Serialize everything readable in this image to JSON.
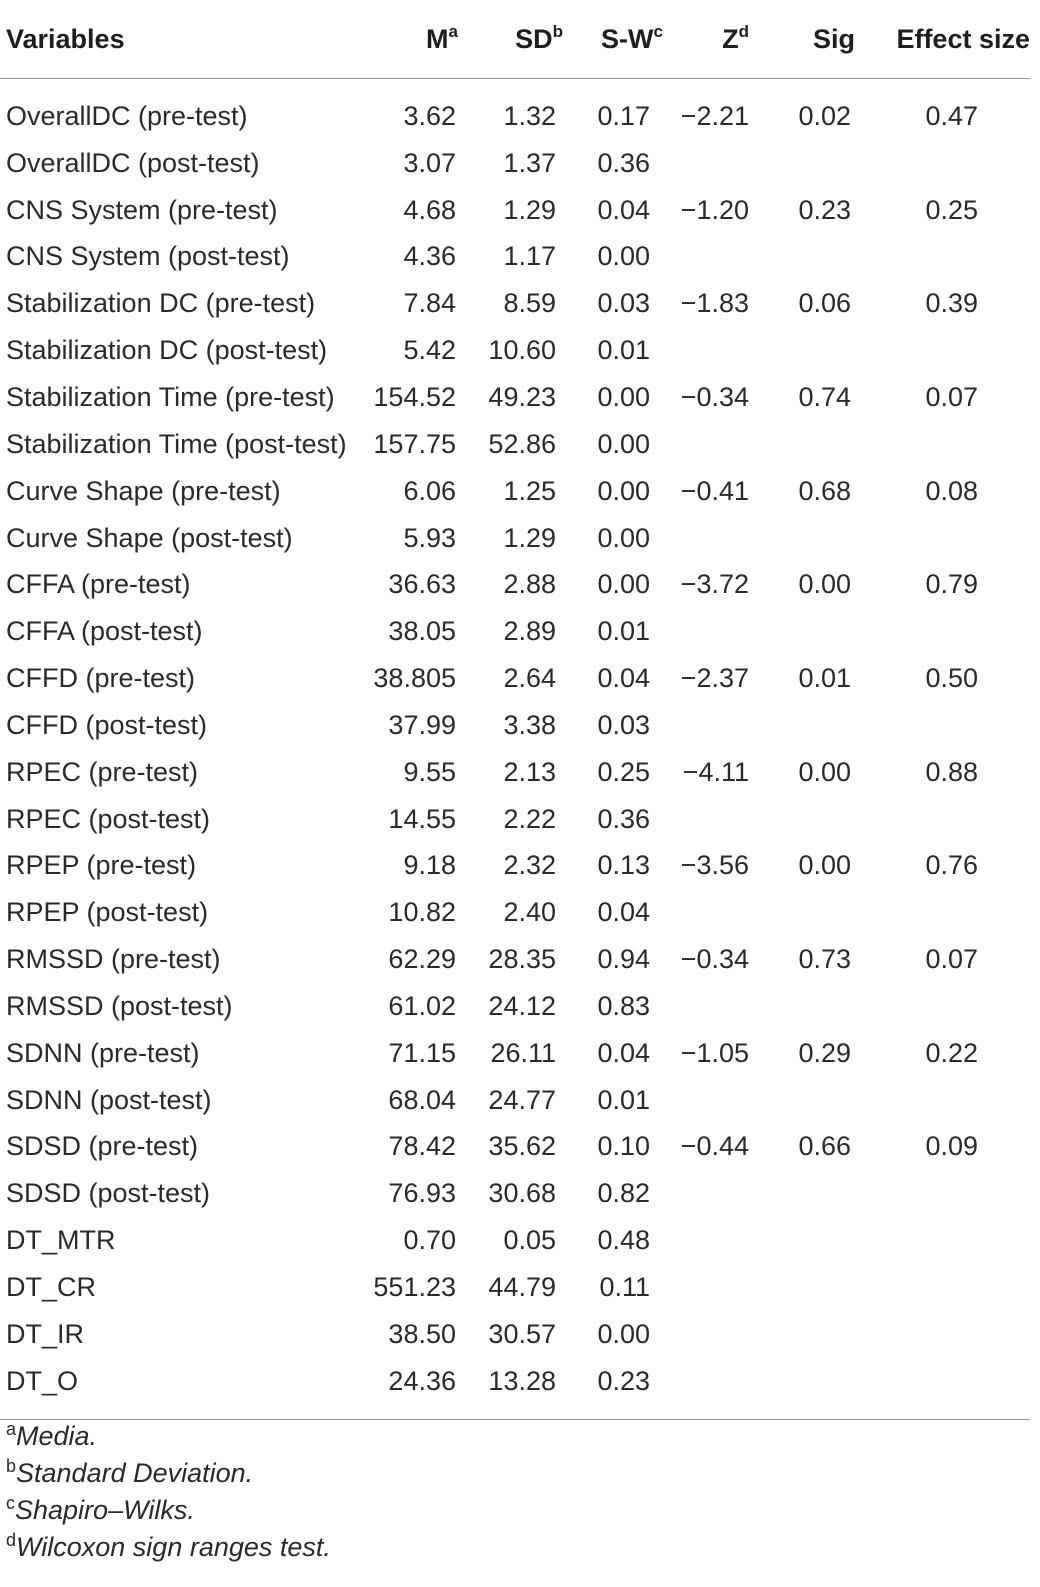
{
  "table": {
    "headers": {
      "variables": "Variables",
      "m": "M",
      "m_sup": "a",
      "sd": "SD",
      "sd_sup": "b",
      "sw": "S-W",
      "sw_sup": "c",
      "z": "Z",
      "z_sup": "d",
      "sig": "Sig",
      "effect_size": "Effect size"
    },
    "rows": [
      {
        "variable": "OverallDC (pre-test)",
        "m": "3.62",
        "sd": "1.32",
        "sw": "0.17",
        "z": "−2.21",
        "sig": "0.02",
        "es": "0.47"
      },
      {
        "variable": "OverallDC (post-test)",
        "m": "3.07",
        "sd": "1.37",
        "sw": "0.36",
        "z": "",
        "sig": "",
        "es": ""
      },
      {
        "variable": "CNS System (pre-test)",
        "m": "4.68",
        "sd": "1.29",
        "sw": "0.04",
        "z": "−1.20",
        "sig": "0.23",
        "es": "0.25"
      },
      {
        "variable": "CNS System (post-test)",
        "m": "4.36",
        "sd": "1.17",
        "sw": "0.00",
        "z": "",
        "sig": "",
        "es": ""
      },
      {
        "variable": "Stabilization DC (pre-test)",
        "m": "7.84",
        "sd": "8.59",
        "sw": "0.03",
        "z": "−1.83",
        "sig": "0.06",
        "es": "0.39"
      },
      {
        "variable": "Stabilization DC (post-test)",
        "m": "5.42",
        "sd": "10.60",
        "sw": "0.01",
        "z": "",
        "sig": "",
        "es": ""
      },
      {
        "variable": "Stabilization Time (pre-test)",
        "m": "154.52",
        "sd": "49.23",
        "sw": "0.00",
        "z": "−0.34",
        "sig": "0.74",
        "es": "0.07"
      },
      {
        "variable": "Stabilization Time (post-test)",
        "m": "157.75",
        "sd": "52.86",
        "sw": "0.00",
        "z": "",
        "sig": "",
        "es": ""
      },
      {
        "variable": "Curve Shape (pre-test)",
        "m": "6.06",
        "sd": "1.25",
        "sw": "0.00",
        "z": "−0.41",
        "sig": "0.68",
        "es": "0.08"
      },
      {
        "variable": "Curve Shape (post-test)",
        "m": "5.93",
        "sd": "1.29",
        "sw": "0.00",
        "z": "",
        "sig": "",
        "es": ""
      },
      {
        "variable": "CFFA (pre-test)",
        "m": "36.63",
        "sd": "2.88",
        "sw": "0.00",
        "z": "−3.72",
        "sig": "0.00",
        "es": "0.79"
      },
      {
        "variable": "CFFA (post-test)",
        "m": "38.05",
        "sd": "2.89",
        "sw": "0.01",
        "z": "",
        "sig": "",
        "es": ""
      },
      {
        "variable": "CFFD (pre-test)",
        "m": "38.805",
        "sd": "2.64",
        "sw": "0.04",
        "z": "−2.37",
        "sig": "0.01",
        "es": "0.50"
      },
      {
        "variable": "CFFD (post-test)",
        "m": "37.99",
        "sd": "3.38",
        "sw": "0.03",
        "z": "",
        "sig": "",
        "es": ""
      },
      {
        "variable": "RPEC (pre-test)",
        "m": "9.55",
        "sd": "2.13",
        "sw": "0.25",
        "z": "−4.11",
        "sig": "0.00",
        "es": "0.88"
      },
      {
        "variable": "RPEC (post-test)",
        "m": "14.55",
        "sd": "2.22",
        "sw": "0.36",
        "z": "",
        "sig": "",
        "es": ""
      },
      {
        "variable": "RPEP (pre-test)",
        "m": "9.18",
        "sd": "2.32",
        "sw": "0.13",
        "z": "−3.56",
        "sig": "0.00",
        "es": "0.76"
      },
      {
        "variable": "RPEP (post-test)",
        "m": "10.82",
        "sd": "2.40",
        "sw": "0.04",
        "z": "",
        "sig": "",
        "es": ""
      },
      {
        "variable": "RMSSD (pre-test)",
        "m": "62.29",
        "sd": "28.35",
        "sw": "0.94",
        "z": "−0.34",
        "sig": "0.73",
        "es": "0.07"
      },
      {
        "variable": "RMSSD (post-test)",
        "m": "61.02",
        "sd": "24.12",
        "sw": "0.83",
        "z": "",
        "sig": "",
        "es": ""
      },
      {
        "variable": "SDNN (pre-test)",
        "m": "71.15",
        "sd": "26.11",
        "sw": "0.04",
        "z": "−1.05",
        "sig": "0.29",
        "es": "0.22"
      },
      {
        "variable": "SDNN (post-test)",
        "m": "68.04",
        "sd": "24.77",
        "sw": "0.01",
        "z": "",
        "sig": "",
        "es": ""
      },
      {
        "variable": "SDSD (pre-test)",
        "m": "78.42",
        "sd": "35.62",
        "sw": "0.10",
        "z": "−0.44",
        "sig": "0.66",
        "es": "0.09"
      },
      {
        "variable": "SDSD (post-test)",
        "m": "76.93",
        "sd": "30.68",
        "sw": "0.82",
        "z": "",
        "sig": "",
        "es": ""
      },
      {
        "variable": "DT_MTR",
        "m": "0.70",
        "sd": "0.05",
        "sw": "0.48",
        "z": "",
        "sig": "",
        "es": ""
      },
      {
        "variable": "DT_CR",
        "m": "551.23",
        "sd": "44.79",
        "sw": "0.11",
        "z": "",
        "sig": "",
        "es": ""
      },
      {
        "variable": "DT_IR",
        "m": "38.50",
        "sd": "30.57",
        "sw": "0.00",
        "z": "",
        "sig": "",
        "es": ""
      },
      {
        "variable": "DT_O",
        "m": "24.36",
        "sd": "13.28",
        "sw": "0.23",
        "z": "",
        "sig": "",
        "es": ""
      }
    ]
  },
  "footnotes": [
    {
      "mark": "a",
      "text": "Media."
    },
    {
      "mark": "b",
      "text": "Standard Deviation."
    },
    {
      "mark": "c",
      "text": "Shapiro–Wilks."
    },
    {
      "mark": "d",
      "text": "Wilcoxon sign ranges test."
    }
  ]
}
